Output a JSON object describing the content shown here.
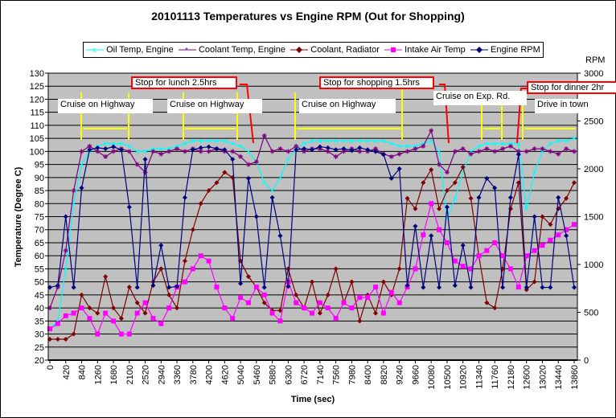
{
  "chart_data": {
    "type": "line",
    "title": "20101113 Temperatures vs Engine RPM (Out for Shopping)",
    "xlabel": "Time (sec)",
    "ylabel": "Temperature (Degree C)",
    "y2label": "RPM",
    "xlim": [
      0,
      13860
    ],
    "ylim": [
      20,
      130
    ],
    "y2lim": [
      0,
      3000
    ],
    "yticks": [
      20,
      25,
      30,
      35,
      40,
      45,
      50,
      55,
      60,
      65,
      70,
      75,
      80,
      85,
      90,
      95,
      100,
      105,
      110,
      115,
      120,
      125,
      130
    ],
    "y2ticks": [
      0,
      500,
      1000,
      1500,
      2000,
      2500,
      3000
    ],
    "xticks": [
      0,
      420,
      840,
      1260,
      1680,
      2100,
      2520,
      2940,
      3360,
      3780,
      4200,
      4620,
      5040,
      5460,
      5880,
      6300,
      6720,
      7140,
      7560,
      7980,
      8400,
      8820,
      9240,
      9660,
      10080,
      10500,
      10920,
      11340,
      11760,
      12180,
      12600,
      13020,
      13440,
      13860
    ],
    "grid": true,
    "legend_position": "top",
    "x_step": 210,
    "series": [
      {
        "name": "Oil Temp, Engine",
        "color": "#00FFFF",
        "marker": "x",
        "axis": "left",
        "values": [
          32,
          35,
          55,
          80,
          95,
          100,
          102,
          103,
          103,
          103,
          102,
          100,
          100,
          101,
          101,
          101,
          102,
          103,
          104,
          104,
          104,
          104,
          104,
          103,
          102,
          100,
          96,
          88,
          85,
          90,
          97,
          101,
          103,
          104,
          104,
          104,
          104,
          104,
          104,
          104,
          104,
          104,
          104,
          103,
          102,
          102,
          102,
          103,
          104,
          100,
          74,
          82,
          92,
          100,
          102,
          103,
          103,
          103,
          103,
          103,
          78,
          92,
          100,
          103,
          104,
          104,
          105
        ]
      },
      {
        "name": "Coolant Temp, Engine",
        "color": "#800080",
        "marker": "star",
        "axis": "left",
        "values": [
          40,
          48,
          62,
          85,
          100,
          102,
          100,
          98,
          100,
          101,
          100,
          95,
          92,
          100,
          99,
          100,
          101,
          100,
          101,
          100,
          100,
          101,
          100,
          100,
          98,
          95,
          96,
          106,
          100,
          101,
          100,
          102,
          100,
          101,
          101,
          100,
          98,
          100,
          101,
          100,
          100,
          101,
          99,
          98,
          99,
          100,
          101,
          102,
          108,
          95,
          92,
          100,
          101,
          99,
          100,
          101,
          100,
          101,
          102,
          100,
          100,
          101,
          101,
          100,
          99,
          101,
          100
        ]
      },
      {
        "name": "Coolant, Radiator",
        "color": "#800000",
        "marker": "diamond",
        "axis": "left",
        "values": [
          28,
          28,
          28,
          30,
          45,
          40,
          38,
          52,
          40,
          36,
          48,
          42,
          38,
          50,
          55,
          45,
          40,
          58,
          70,
          80,
          85,
          88,
          92,
          90,
          58,
          52,
          48,
          42,
          39,
          39,
          55,
          45,
          40,
          50,
          38,
          45,
          55,
          42,
          50,
          35,
          45,
          38,
          50,
          45,
          55,
          82,
          78,
          88,
          93,
          78,
          85,
          88,
          94,
          82,
          60,
          42,
          40,
          55,
          78,
          88,
          47,
          50,
          75,
          72,
          78,
          82,
          88
        ]
      },
      {
        "name": "Intake Air Temp",
        "color": "#FF00FF",
        "marker": "square",
        "axis": "left",
        "values": [
          32,
          34,
          37,
          38,
          40,
          36,
          30,
          38,
          35,
          30,
          30,
          38,
          42,
          36,
          34,
          40,
          48,
          50,
          55,
          60,
          58,
          48,
          40,
          36,
          44,
          42,
          48,
          45,
          38,
          35,
          50,
          42,
          40,
          38,
          42,
          40,
          36,
          42,
          40,
          44,
          44,
          48,
          38,
          46,
          42,
          48,
          55,
          68,
          80,
          70,
          65,
          58,
          56,
          55,
          60,
          62,
          65,
          60,
          55,
          48,
          60,
          62,
          64,
          66,
          68,
          70,
          72
        ]
      },
      {
        "name": "Engine RPM",
        "color": "#000080",
        "marker": "diamond",
        "axis": "right",
        "values": [
          760,
          780,
          1500,
          760,
          1800,
          2200,
          2220,
          2210,
          2230,
          2200,
          1600,
          760,
          2100,
          780,
          1200,
          760,
          770,
          1700,
          2200,
          2220,
          2230,
          2210,
          2200,
          2100,
          800,
          1900,
          1500,
          760,
          1700,
          1300,
          770,
          2200,
          2210,
          2200,
          2230,
          2220,
          2200,
          2210,
          2190,
          2220,
          2200,
          2180,
          2150,
          1900,
          2000,
          780,
          1400,
          760,
          1300,
          760,
          1600,
          780,
          1200,
          760,
          1700,
          1900,
          1800,
          760,
          1700,
          2150,
          760,
          1500,
          760,
          760,
          1700,
          1300,
          760
        ]
      }
    ],
    "annotations": [
      "Cruise on Highway",
      "Stop for lunch 2.5hrs",
      "Cruise on Highway",
      "Cruise on Highway",
      "Stop for shopping 1.5hrs",
      "Cruise on Exp. Rd.",
      "Stop for dinner 2hr",
      "Drive in town"
    ]
  }
}
